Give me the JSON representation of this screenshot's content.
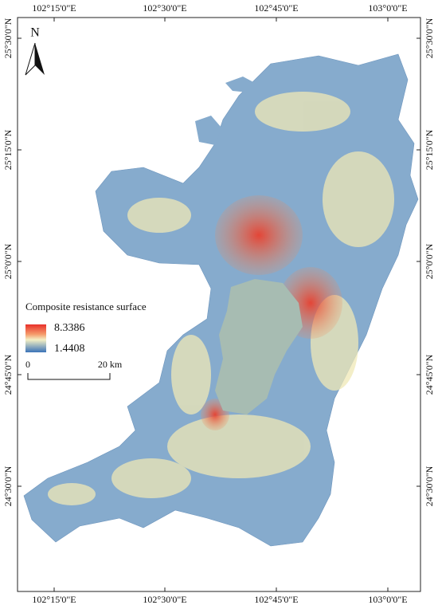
{
  "map": {
    "longitude_labels": [
      "102°15'0\"E",
      "102°30'0\"E",
      "102°45'0\"E",
      "103°0'0\"E"
    ],
    "latitude_labels": [
      "25°30'0\"N",
      "25°15'0\"N",
      "25°0'0\"N",
      "24°45'0\"N",
      "24°30'0\"N"
    ],
    "north_arrow": "N",
    "legend": {
      "title": "Composite resistance surface",
      "high": "8.3386",
      "low": "1.4408"
    },
    "scale_bar": {
      "start": "0",
      "end": "20 km"
    }
  }
}
